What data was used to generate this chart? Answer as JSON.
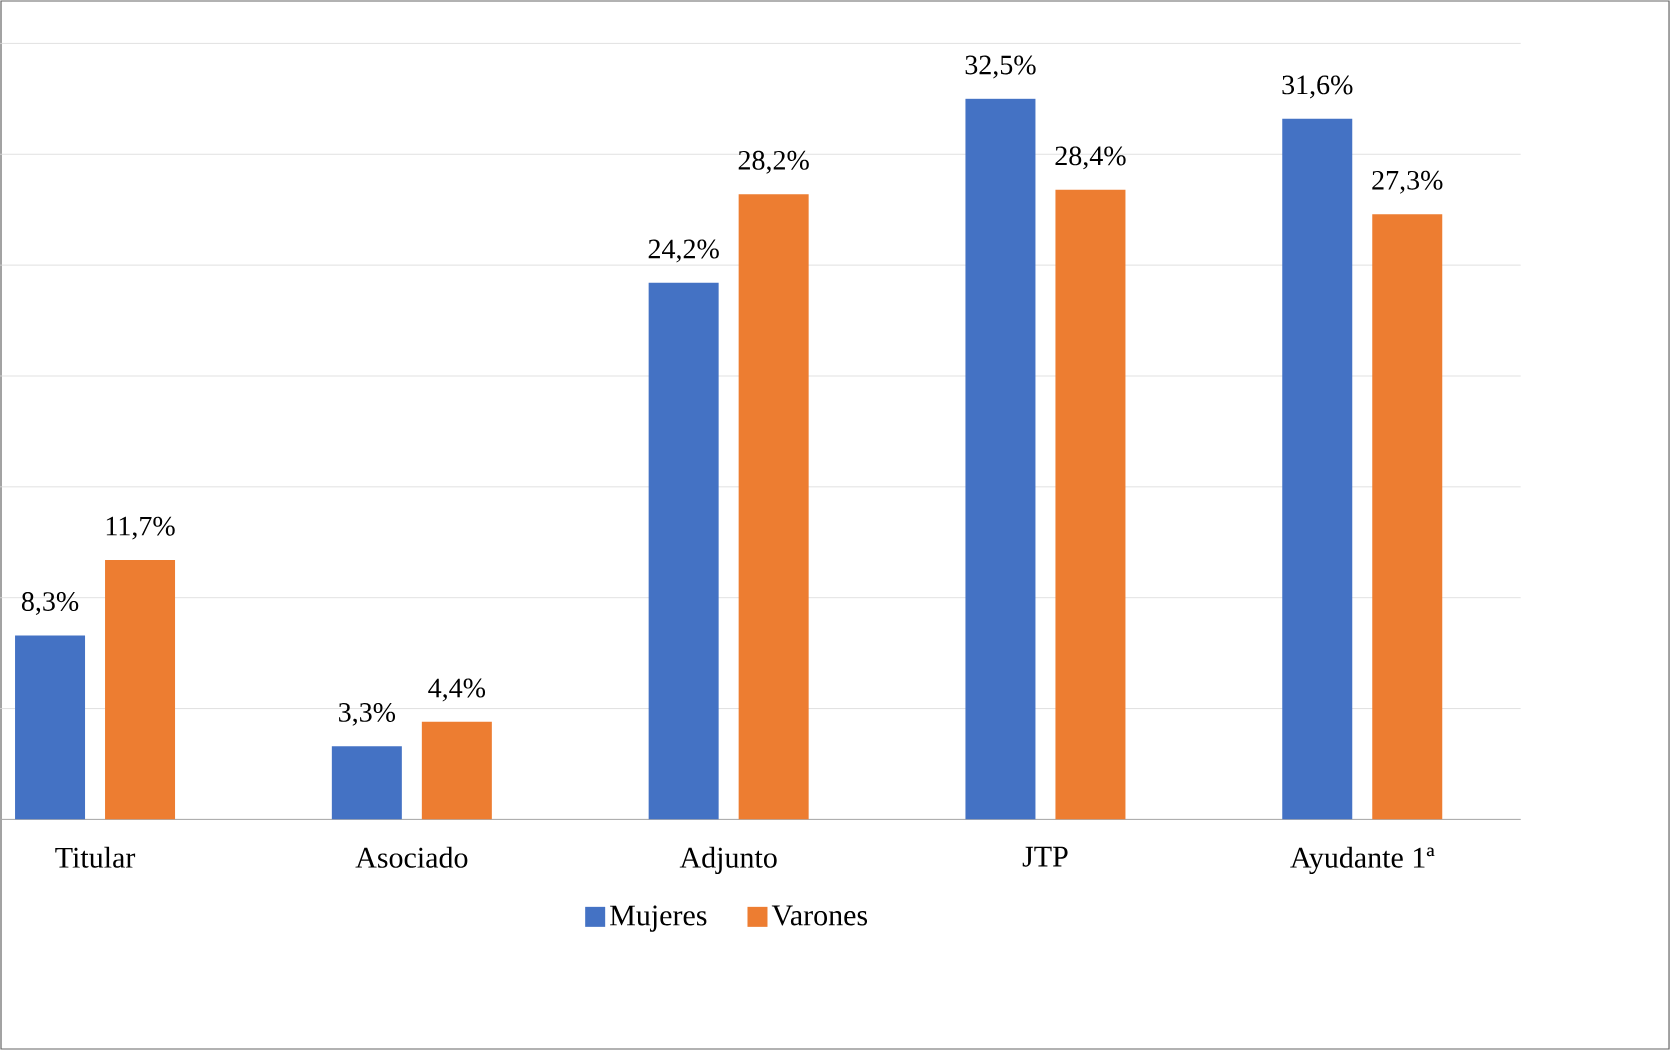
{
  "chart_data": {
    "type": "bar",
    "categories": [
      "Titular",
      "Asociado",
      "Adjunto",
      "JTP",
      "Ayudante 1ª"
    ],
    "series": [
      {
        "name": "Mujeres",
        "color": "#4472c4",
        "values": [
          8.3,
          3.3,
          24.2,
          32.5,
          31.6
        ],
        "value_labels": [
          "8,3%",
          "3,3%",
          "24,2%",
          "32,5%",
          "31,6%"
        ]
      },
      {
        "name": "Varones",
        "color": "#ed7d31",
        "values": [
          11.7,
          4.4,
          28.2,
          28.4,
          27.3
        ],
        "value_labels": [
          "11,7%",
          "4,4%",
          "28,2%",
          "28,4%",
          "27,3%"
        ]
      }
    ],
    "ylim": [
      0,
      35
    ],
    "yticks": [
      {
        "value": 0,
        "label": null
      },
      {
        "value": 5,
        "label": null
      },
      {
        "value": 10,
        "label": null
      },
      {
        "value": 15,
        "label": null
      },
      {
        "value": 20,
        "label": null
      },
      {
        "value": 25,
        "label": null
      },
      {
        "value": 30,
        "label": null
      },
      {
        "value": 35,
        "label": null
      }
    ],
    "tick_labels": "x",
    "grid": "y",
    "legend": "bottom"
  }
}
